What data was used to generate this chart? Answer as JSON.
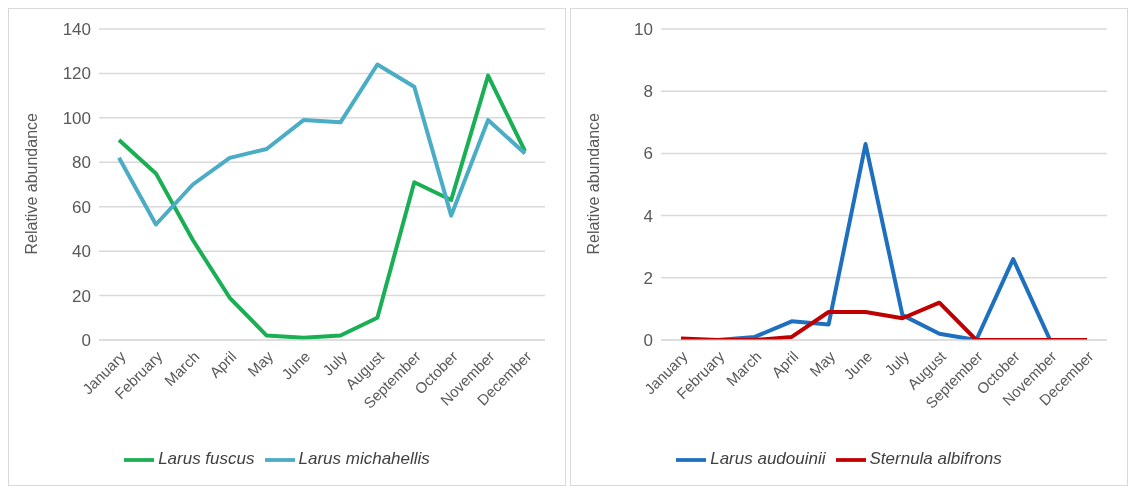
{
  "chart_data": [
    {
      "type": "line",
      "ylabel": "Relative abundance",
      "categories": [
        "January",
        "February",
        "March",
        "April",
        "May",
        "June",
        "July",
        "August",
        "September",
        "October",
        "November",
        "December"
      ],
      "series": [
        {
          "name": "Larus fuscus",
          "color": "#1aaf54",
          "values": [
            90,
            75,
            45,
            19,
            2,
            1,
            2,
            10,
            71,
            63,
            119,
            85
          ]
        },
        {
          "name": "Larus michahellis",
          "color": "#4bacc6",
          "values": [
            82,
            52,
            70,
            82,
            86,
            99,
            98,
            124,
            114,
            56,
            99,
            84
          ]
        }
      ],
      "ylim": [
        0,
        140
      ],
      "yticks": [
        0,
        20,
        40,
        60,
        80,
        100,
        120,
        140
      ],
      "grid": "y",
      "legend": "bottom",
      "marker": "none",
      "line_style": "solid"
    },
    {
      "type": "line",
      "ylabel": "Relative abundance",
      "categories": [
        "January",
        "February",
        "March",
        "April",
        "May",
        "June",
        "July",
        "August",
        "September",
        "October",
        "November",
        "December"
      ],
      "series": [
        {
          "name": "Larus audouinii",
          "color": "#1f6fbf",
          "values": [
            0,
            0,
            0.1,
            0.6,
            0.5,
            6.3,
            0.8,
            0.2,
            0,
            2.6,
            0,
            0
          ]
        },
        {
          "name": "Sternula albifrons",
          "color": "#c00000",
          "values": [
            0.05,
            0,
            0,
            0.1,
            0.9,
            0.9,
            0.7,
            1.2,
            0,
            0,
            0,
            0
          ]
        }
      ],
      "ylim": [
        0,
        10
      ],
      "yticks": [
        0,
        2,
        4,
        6,
        8,
        10
      ],
      "grid": "y",
      "legend": "bottom",
      "marker": "none",
      "line_style": "solid"
    }
  ]
}
